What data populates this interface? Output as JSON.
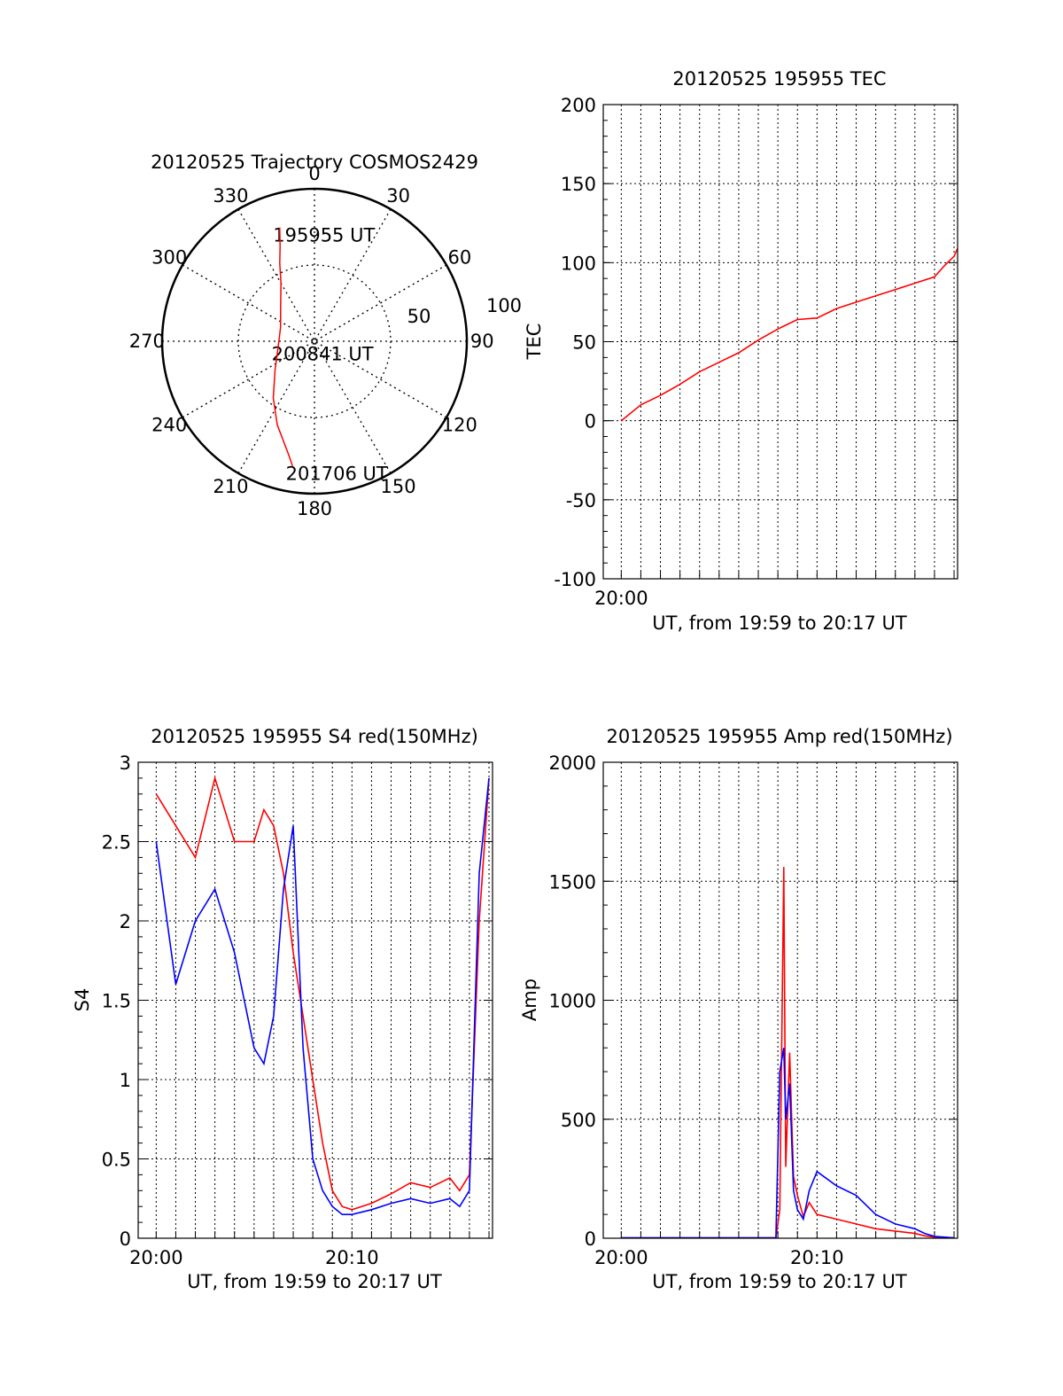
{
  "chart_data": [
    {
      "type": "polar",
      "title": "20120525 Trajectory COSMOS2429",
      "azimuth_labels": [
        "0",
        "30",
        "60",
        "90",
        "120",
        "150",
        "180",
        "210",
        "240",
        "270",
        "300",
        "330"
      ],
      "radial_labels": [
        "50",
        "100"
      ],
      "rlim": [
        0,
        100
      ],
      "grid": true,
      "series": [
        {
          "color": "#ff0000",
          "points": [
            {
              "az": 343,
              "r": 78
            },
            {
              "az": 340,
              "r": 66
            },
            {
              "az": 336,
              "r": 56
            },
            {
              "az": 330,
              "r": 44
            },
            {
              "az": 316,
              "r": 32
            },
            {
              "az": 292,
              "r": 24
            },
            {
              "az": 262,
              "r": 24
            },
            {
              "az": 234,
              "r": 32
            },
            {
              "az": 216,
              "r": 46
            },
            {
              "az": 204,
              "r": 60
            },
            {
              "az": 193,
              "r": 76
            },
            {
              "az": 190,
              "r": 83
            }
          ]
        }
      ],
      "annotations": [
        {
          "text": "195955 UT",
          "az": 343,
          "r": 78
        },
        {
          "text": "200841 UT",
          "az": 262,
          "r": 24
        },
        {
          "text": "201706 UT",
          "az": 190,
          "r": 83
        }
      ]
    },
    {
      "type": "line",
      "title": "20120525 195955 TEC",
      "xlabel": "UT, from 19:59 to 20:17 UT",
      "ylabel": "TEC",
      "x_tick_labels": [
        "20:00"
      ],
      "y_tick_labels": [
        "-100",
        "-50",
        "0",
        "50",
        "100",
        "150",
        "200"
      ],
      "xlim_minutes": [
        -0.92,
        17.18
      ],
      "ylim": [
        -100,
        200
      ],
      "grid": true,
      "series": [
        {
          "color": "#ff0000",
          "x": [
            0,
            1,
            2,
            3,
            4,
            5,
            6,
            7,
            8,
            9,
            10,
            11,
            12,
            13,
            14,
            15,
            16,
            16.5,
            17,
            17.18
          ],
          "values": [
            0,
            10,
            16,
            23,
            31,
            37,
            43,
            51,
            58,
            64,
            65,
            71,
            75,
            79,
            83,
            87,
            91,
            98,
            104,
            109
          ]
        }
      ]
    },
    {
      "type": "line",
      "title": "20120525 195955 S4 red(150MHz)",
      "xlabel": "UT, from 19:59 to 20:17 UT",
      "ylabel": "S4",
      "x_tick_labels": [
        "20:00",
        "20:10"
      ],
      "y_tick_labels": [
        "0",
        "0.5",
        "1",
        "1.5",
        "2",
        "2.5",
        "3"
      ],
      "xlim_minutes": [
        -0.92,
        17.18
      ],
      "ylim": [
        0,
        3
      ],
      "grid": true,
      "series": [
        {
          "color": "#ff0000",
          "x": [
            0,
            1,
            2,
            3,
            4,
            5,
            5.5,
            6,
            6.5,
            7,
            7.5,
            8,
            8.5,
            9,
            9.5,
            10,
            11,
            12,
            13,
            14,
            15,
            15.5,
            16,
            16.5,
            17
          ],
          "values": [
            2.8,
            2.6,
            2.4,
            2.9,
            2.5,
            2.5,
            2.7,
            2.6,
            2.3,
            1.8,
            1.4,
            1.0,
            0.6,
            0.3,
            0.2,
            0.18,
            0.22,
            0.28,
            0.35,
            0.32,
            0.38,
            0.3,
            0.4,
            2.0,
            2.9
          ]
        },
        {
          "color": "#0000ff",
          "x": [
            0,
            1,
            2,
            3,
            4,
            5,
            5.5,
            6,
            6.5,
            7,
            7.5,
            8,
            8.5,
            9,
            9.5,
            10,
            11,
            12,
            13,
            14,
            15,
            15.5,
            16,
            16.5,
            17
          ],
          "values": [
            2.5,
            1.6,
            2.0,
            2.2,
            1.8,
            1.2,
            1.1,
            1.4,
            2.2,
            2.6,
            1.2,
            0.5,
            0.3,
            0.2,
            0.15,
            0.15,
            0.18,
            0.22,
            0.25,
            0.22,
            0.25,
            0.2,
            0.3,
            2.3,
            2.9
          ]
        }
      ]
    },
    {
      "type": "line",
      "title": "20120525 195955 Amp red(150MHz)",
      "xlabel": "UT, from 19:59 to 20:17 UT",
      "ylabel": "Amp",
      "x_tick_labels": [
        "20:00",
        "20:10"
      ],
      "y_tick_labels": [
        "0",
        "500",
        "1000",
        "1500",
        "2000"
      ],
      "xlim_minutes": [
        -0.92,
        17.18
      ],
      "ylim": [
        0,
        2000
      ],
      "grid": true,
      "series": [
        {
          "color": "#ff0000",
          "x": [
            0,
            7.9,
            8.1,
            8.3,
            8.4,
            8.6,
            8.8,
            9.0,
            9.3,
            9.6,
            10,
            11,
            12,
            13,
            14,
            15,
            15.5,
            16,
            17
          ],
          "values": [
            2,
            2,
            120,
            1560,
            300,
            780,
            260,
            180,
            90,
            150,
            100,
            80,
            60,
            40,
            30,
            20,
            10,
            5,
            2
          ]
        },
        {
          "color": "#0000ff",
          "x": [
            0,
            7.9,
            8.1,
            8.3,
            8.4,
            8.6,
            8.8,
            9.0,
            9.3,
            9.6,
            10,
            11,
            12,
            13,
            14,
            15,
            15.5,
            16,
            17
          ],
          "values": [
            2,
            2,
            700,
            800,
            500,
            650,
            200,
            120,
            80,
            200,
            280,
            220,
            180,
            100,
            60,
            40,
            20,
            8,
            2
          ]
        }
      ]
    }
  ]
}
